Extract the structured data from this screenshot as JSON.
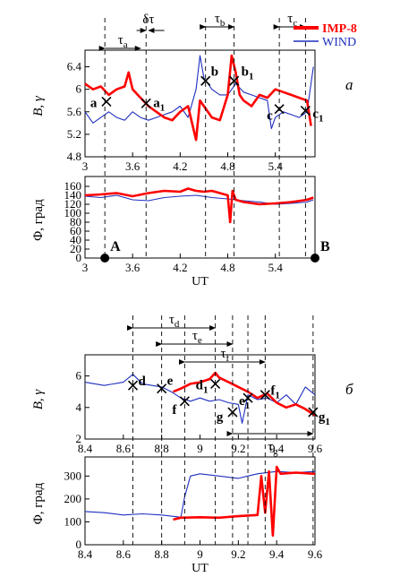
{
  "legend": {
    "imp8": "IMP-8",
    "wind": "WIND",
    "imp8_color": "#ff0000",
    "wind_color": "#1f2fbf"
  },
  "chart_data": [
    {
      "type": "line",
      "panel": "a-top",
      "ylabel": "B, γ",
      "xlim": [
        3.0,
        5.9
      ],
      "ylim": [
        4.8,
        6.6
      ],
      "xticks": [
        "3",
        "3.6",
        "4.2",
        "4.8",
        "5.4"
      ],
      "yticks": [
        "4.8",
        "5.2",
        "5.6",
        "6",
        "6.4"
      ],
      "panel_label": "а",
      "interval_labels": [
        {
          "sym": "τ",
          "sub": "a"
        },
        {
          "sym": "δτ",
          "sub": ""
        },
        {
          "sym": "τ",
          "sub": "b"
        },
        {
          "sym": "τ",
          "sub": "c"
        }
      ],
      "points": [
        {
          "main": "a",
          "sub": ""
        },
        {
          "main": "a",
          "sub": "1"
        },
        {
          "main": "b",
          "sub": ""
        },
        {
          "main": "b",
          "sub": "1"
        },
        {
          "main": "c",
          "sub": ""
        },
        {
          "main": "c",
          "sub": "1"
        }
      ],
      "series": [
        {
          "name": "IMP-8",
          "x": [
            3.0,
            3.1,
            3.2,
            3.3,
            3.4,
            3.5,
            3.55,
            3.6,
            3.7,
            3.8,
            3.9,
            4.0,
            4.1,
            4.2,
            4.3,
            4.35,
            4.4,
            4.45,
            4.5,
            4.6,
            4.7,
            4.8,
            4.85,
            4.9,
            4.95,
            5.0,
            5.1,
            5.2,
            5.3,
            5.4,
            5.5,
            5.6,
            5.7,
            5.8,
            5.85
          ],
          "y": [
            6.1,
            6.0,
            6.05,
            5.9,
            6.0,
            6.05,
            6.3,
            6.0,
            5.85,
            5.7,
            5.6,
            5.5,
            5.45,
            5.6,
            5.7,
            5.4,
            5.1,
            5.8,
            5.7,
            5.5,
            5.45,
            5.9,
            6.6,
            6.3,
            5.9,
            5.8,
            5.7,
            5.9,
            5.85,
            6.0,
            5.95,
            5.9,
            5.85,
            5.8,
            5.35
          ]
        },
        {
          "name": "WIND",
          "x": [
            3.0,
            3.1,
            3.2,
            3.3,
            3.4,
            3.5,
            3.6,
            3.7,
            3.8,
            3.9,
            4.0,
            4.1,
            4.2,
            4.3,
            4.4,
            4.45,
            4.5,
            4.6,
            4.7,
            4.8,
            4.9,
            5.0,
            5.1,
            5.2,
            5.3,
            5.35,
            5.4,
            5.5,
            5.6,
            5.7,
            5.8,
            5.88
          ],
          "y": [
            5.6,
            5.4,
            5.5,
            5.6,
            5.5,
            5.45,
            5.6,
            5.5,
            5.45,
            5.5,
            5.55,
            5.6,
            5.7,
            5.5,
            6.0,
            6.6,
            6.2,
            6.0,
            5.9,
            5.9,
            6.1,
            5.95,
            5.9,
            5.85,
            5.8,
            5.3,
            5.5,
            5.6,
            5.55,
            5.5,
            5.6,
            6.4
          ]
        }
      ]
    },
    {
      "type": "line",
      "panel": "a-bottom",
      "ylabel": "Φ, град",
      "xlabel": "UT",
      "xlim": [
        3.0,
        5.9
      ],
      "ylim": [
        0,
        170
      ],
      "xticks": [
        "3",
        "3.6",
        "4.2",
        "4.8",
        "5.4"
      ],
      "yticks": [
        "0",
        "20",
        "40",
        "60",
        "80",
        "100",
        "120",
        "140",
        "160"
      ],
      "events": [
        {
          "label": "A",
          "x": 3.25
        },
        {
          "label": "B",
          "x": 5.9
        }
      ],
      "series": [
        {
          "name": "IMP-8",
          "x": [
            3.0,
            3.2,
            3.4,
            3.6,
            3.8,
            4.0,
            4.2,
            4.3,
            4.4,
            4.5,
            4.6,
            4.7,
            4.8,
            4.83,
            4.86,
            4.9,
            5.0,
            5.2,
            5.4,
            5.6,
            5.8,
            5.88
          ],
          "y": [
            140,
            142,
            145,
            138,
            145,
            150,
            148,
            155,
            150,
            148,
            150,
            145,
            140,
            80,
            150,
            130,
            125,
            120,
            122,
            125,
            130,
            135
          ]
        },
        {
          "name": "WIND",
          "x": [
            3.0,
            3.2,
            3.4,
            3.6,
            3.8,
            4.0,
            4.2,
            4.4,
            4.6,
            4.8,
            5.0,
            5.2,
            5.4,
            5.6,
            5.8,
            5.88
          ],
          "y": [
            138,
            135,
            140,
            130,
            128,
            135,
            138,
            140,
            135,
            132,
            128,
            125,
            120,
            122,
            125,
            130
          ]
        }
      ]
    },
    {
      "type": "line",
      "panel": "b-top",
      "ylabel": "B, γ",
      "xlim": [
        8.4,
        9.6
      ],
      "ylim": [
        2,
        7
      ],
      "xticks": [
        "8.4",
        "8.6",
        "8.8",
        "9",
        "9.2",
        "9.4",
        "9.6"
      ],
      "yticks": [
        "2",
        "4",
        "6"
      ],
      "panel_label": "б",
      "interval_labels": [
        {
          "sym": "τ",
          "sub": "d"
        },
        {
          "sym": "τ",
          "sub": "e"
        },
        {
          "sym": "τ",
          "sub": "f"
        },
        {
          "sym": "τ",
          "sub": "g"
        }
      ],
      "points": [
        {
          "main": "d",
          "sub": ""
        },
        {
          "main": "e",
          "sub": ""
        },
        {
          "main": "f",
          "sub": ""
        },
        {
          "main": "d",
          "sub": "1"
        },
        {
          "main": "g",
          "sub": ""
        },
        {
          "main": "e",
          "sub": "1"
        },
        {
          "main": "f",
          "sub": "1"
        },
        {
          "main": "g",
          "sub": "1"
        }
      ],
      "series": [
        {
          "name": "IMP-8",
          "x": [
            8.86,
            8.9,
            8.95,
            9.0,
            9.05,
            9.08,
            9.1,
            9.15,
            9.2,
            9.25,
            9.3,
            9.35,
            9.4,
            9.45,
            9.5,
            9.55,
            9.6
          ],
          "y": [
            5.0,
            5.2,
            5.5,
            5.6,
            5.8,
            6.2,
            5.9,
            5.6,
            5.3,
            5.0,
            4.6,
            4.9,
            4.3,
            4.0,
            4.2,
            3.9,
            3.5
          ]
        },
        {
          "name": "WIND",
          "x": [
            8.4,
            8.5,
            8.6,
            8.65,
            8.7,
            8.8,
            8.85,
            8.9,
            8.95,
            9.0,
            9.05,
            9.1,
            9.15,
            9.2,
            9.22,
            9.25,
            9.3,
            9.35,
            9.4,
            9.45,
            9.5,
            9.55,
            9.6
          ],
          "y": [
            5.6,
            5.4,
            5.6,
            6.1,
            5.5,
            5.3,
            5.0,
            4.6,
            4.4,
            4.6,
            4.4,
            4.5,
            4.3,
            4.2,
            3.0,
            4.8,
            4.5,
            4.6,
            4.3,
            4.8,
            4.2,
            5.3,
            4.8
          ]
        }
      ]
    },
    {
      "type": "line",
      "panel": "b-bottom",
      "ylabel": "Φ, град",
      "xlabel": "UT",
      "xlim": [
        8.4,
        9.6
      ],
      "ylim": [
        0,
        360
      ],
      "xticks": [
        "8.4",
        "8.6",
        "8.8",
        "9",
        "9.2",
        "9.4",
        "9.6"
      ],
      "yticks": [
        "0",
        "100",
        "200",
        "300"
      ],
      "series": [
        {
          "name": "IMP-8",
          "x": [
            8.86,
            8.9,
            9.0,
            9.1,
            9.2,
            9.3,
            9.32,
            9.34,
            9.36,
            9.38,
            9.4,
            9.42,
            9.5,
            9.6
          ],
          "y": [
            110,
            118,
            120,
            118,
            125,
            130,
            300,
            140,
            320,
            40,
            340,
            310,
            315,
            310
          ]
        },
        {
          "name": "WIND",
          "x": [
            8.4,
            8.5,
            8.6,
            8.7,
            8.8,
            8.9,
            8.92,
            8.95,
            9.0,
            9.1,
            9.2,
            9.25,
            9.3,
            9.4,
            9.5,
            9.6
          ],
          "y": [
            145,
            140,
            130,
            135,
            130,
            120,
            210,
            300,
            310,
            300,
            290,
            300,
            310,
            320,
            315,
            320
          ]
        }
      ]
    }
  ]
}
